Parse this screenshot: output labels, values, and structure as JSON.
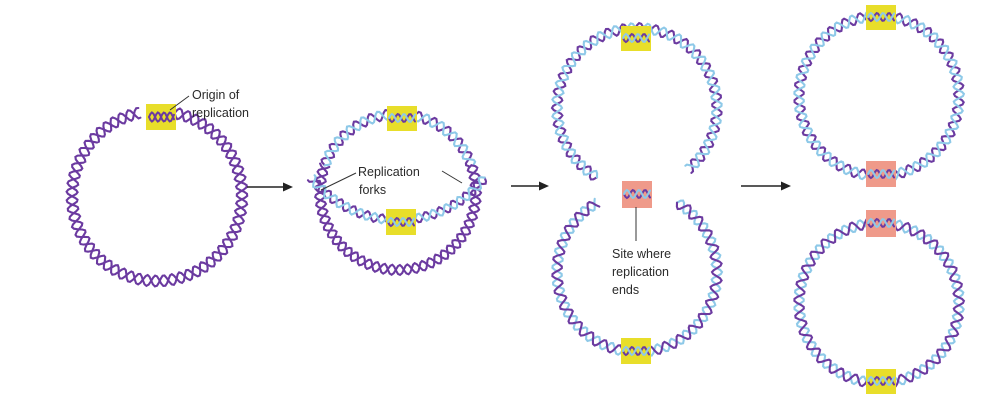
{
  "labels": {
    "origin_line1": "Origin of",
    "origin_line2": "replication",
    "forks_line1": "Replication",
    "forks_line2": "forks",
    "site_line1": "Site where",
    "site_line2": "replication",
    "site_line3": "ends"
  },
  "colors": {
    "parental_strand": "#6b3aa0",
    "new_strand": "#8ec9e8",
    "origin_box": "#e8de2a",
    "terminus_box": "#ef9a8a",
    "arrow": "#222222",
    "text": "#2a2a2a"
  },
  "stages": [
    "circular chromosome with origin of replication",
    "bidirectional replication with two replication forks",
    "replication nearly complete at site where replication ends",
    "two daughter chromosomes"
  ]
}
